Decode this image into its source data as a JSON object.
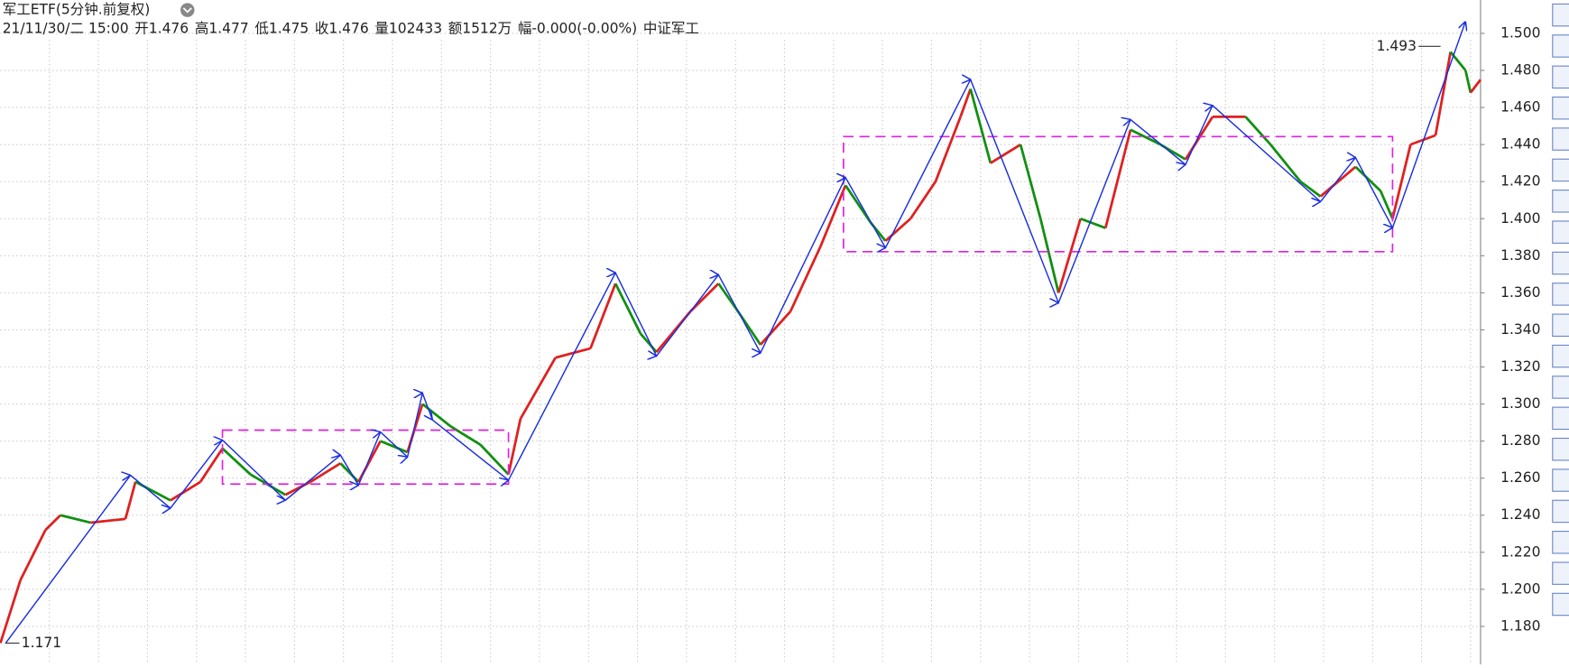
{
  "chart_data": {
    "type": "kline-zigzag",
    "title": "军工ETF(5分钟.前复权)",
    "info": [
      {
        "text": "21/11/30/二 15:00",
        "color": "#222"
      },
      {
        "text": "开1.476",
        "color": "#222"
      },
      {
        "text": "高1.477",
        "color": "#e02020"
      },
      {
        "text": "低1.475",
        "color": "#109010"
      },
      {
        "text": "收1.476",
        "color": "#222"
      },
      {
        "text": "量102433",
        "color": "#222"
      },
      {
        "text": "额1512万",
        "color": "#222"
      },
      {
        "text": "幅-0.000(-0.00%)",
        "color": "#222"
      },
      {
        "text": "中证军工",
        "color": "#222"
      }
    ],
    "xlim": [
      0,
      1480
    ],
    "ylim": [
      1.1595,
      1.518
    ],
    "yticks": [
      {
        "value": 1.18,
        "label": "1.180"
      },
      {
        "value": 1.2,
        "label": "1.200"
      },
      {
        "value": 1.22,
        "label": "1.220"
      },
      {
        "value": 1.24,
        "label": "1.240"
      },
      {
        "value": 1.26,
        "label": "1.260"
      },
      {
        "value": 1.28,
        "label": "1.280"
      },
      {
        "value": 1.3,
        "label": "1.300"
      },
      {
        "value": 1.32,
        "label": "1.320"
      },
      {
        "value": 1.34,
        "label": "1.340"
      },
      {
        "value": 1.36,
        "label": "1.360"
      },
      {
        "value": 1.38,
        "label": "1.380"
      },
      {
        "value": 1.4,
        "label": "1.400"
      },
      {
        "value": 1.42,
        "label": "1.420"
      },
      {
        "value": 1.44,
        "label": "1.440"
      },
      {
        "value": 1.46,
        "label": "1.460"
      },
      {
        "value": 1.48,
        "label": "1.480"
      },
      {
        "value": 1.5,
        "label": "1.500"
      }
    ],
    "grid": true,
    "up_color": "#e02020",
    "down_color": "#109010",
    "price": {
      "x": [
        0,
        20,
        45,
        60,
        90,
        125,
        135,
        170,
        200,
        222,
        250,
        285,
        310,
        340,
        358,
        380,
        407,
        422,
        450,
        480,
        508,
        520,
        555,
        590,
        615,
        640,
        656,
        690,
        718,
        740,
        760,
        790,
        820,
        845,
        870,
        885,
        910,
        935,
        960,
        970,
        990,
        1020,
        1040,
        1058,
        1080,
        1105,
        1130,
        1160,
        1185,
        1212,
        1245,
        1270,
        1300,
        1320,
        1355,
        1380,
        1392,
        1410,
        1435,
        1450,
        1465,
        1470,
        1480
      ],
      "values": [
        1.171,
        1.205,
        1.232,
        1.24,
        1.236,
        1.238,
        1.258,
        1.248,
        1.258,
        1.276,
        1.262,
        1.251,
        1.258,
        1.268,
        1.258,
        1.28,
        1.274,
        1.3,
        1.288,
        1.278,
        1.262,
        1.292,
        1.325,
        1.33,
        1.365,
        1.338,
        1.328,
        1.35,
        1.365,
        1.348,
        1.332,
        1.35,
        1.385,
        1.418,
        1.398,
        1.388,
        1.4,
        1.42,
        1.455,
        1.47,
        1.43,
        1.44,
        1.4,
        1.36,
        1.4,
        1.395,
        1.448,
        1.44,
        1.432,
        1.455,
        1.455,
        1.44,
        1.42,
        1.412,
        1.428,
        1.415,
        1.4,
        1.44,
        1.445,
        1.49,
        1.48,
        1.468,
        1.475
      ]
    },
    "zigzag": {
      "color": "#1a2ee0",
      "x": [
        5,
        130,
        170,
        222,
        285,
        340,
        358,
        380,
        407,
        422,
        432,
        508,
        615,
        656,
        718,
        760,
        845,
        885,
        970,
        1058,
        1130,
        1185,
        1212,
        1320,
        1355,
        1392,
        1465
      ],
      "values": [
        1.1708,
        1.2616,
        1.2438,
        1.2805,
        1.2481,
        1.2724,
        1.2562,
        1.2849,
        1.2714,
        1.3059,
        1.2914,
        1.2589,
        1.3708,
        1.3259,
        1.3697,
        1.3276,
        1.4222,
        1.3843,
        1.4751,
        1.3546,
        1.4535,
        1.4292,
        1.4611,
        1.4092,
        1.433,
        1.3951,
        1.5065
      ]
    },
    "boxes": [
      {
        "color": "#e020e0",
        "x": [
          222,
          508
        ],
        "values": [
          1.2859,
          1.2568
        ]
      },
      {
        "color": "#e020e0",
        "x": [
          843,
          1392
        ],
        "values": [
          1.4443,
          1.3822
        ]
      }
    ],
    "annotations": [
      {
        "x": 1440,
        "value": 1.493
      },
      {
        "x": 5,
        "value": 1.171
      }
    ]
  }
}
